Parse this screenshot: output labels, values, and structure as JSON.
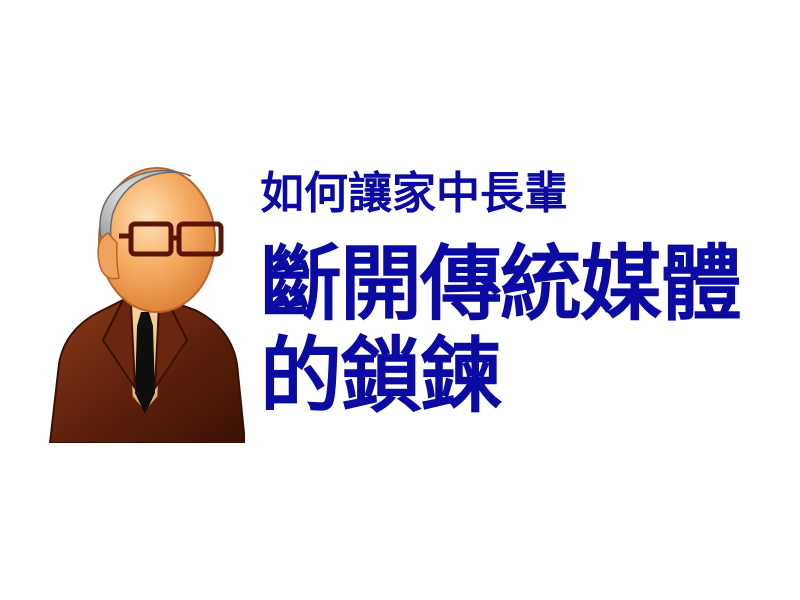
{
  "text": {
    "subtitle": "如何讓家中長輩",
    "headline_line1": "斷開傳統媒體",
    "headline_line2": "的鎖鍊"
  },
  "icons": {
    "avatar": "elderly-man-with-glasses-icon"
  },
  "colors": {
    "text_blue": "#0b0ba3",
    "suit_brown": "#5a1e0a",
    "skin": "#f2a35c",
    "glasses": "#5c1407"
  }
}
